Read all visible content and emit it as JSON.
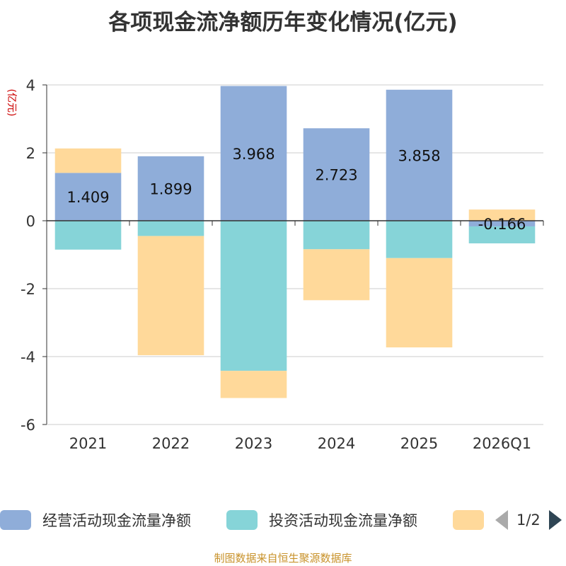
{
  "chart_data": {
    "type": "bar",
    "stacked": true,
    "title": "各项现金流净额历年变化情况(亿元)",
    "ylabel": "(亿元)",
    "xlabel": "",
    "ylim": [
      -6,
      4
    ],
    "yticks": [
      -6,
      -4,
      -2,
      0,
      2,
      4
    ],
    "grid": true,
    "legend_position": "bottom",
    "categories": [
      "2021",
      "2022",
      "2023",
      "2024",
      "2025",
      "2026Q1"
    ],
    "series": [
      {
        "name": "经营活动现金流量净额",
        "color": "#8fadd9",
        "values": [
          1.409,
          1.899,
          3.968,
          2.723,
          3.858,
          -0.166
        ],
        "labels": [
          "1.409",
          "1.899",
          "3.968",
          "2.723",
          "3.858",
          "-0.166"
        ]
      },
      {
        "name": "投资活动现金流量净额",
        "color": "#86d4d8",
        "values": [
          -0.85,
          -0.45,
          -4.42,
          -0.84,
          -1.1,
          -0.5
        ],
        "labels": null
      },
      {
        "name": "",
        "color": "#ffd99a",
        "values": [
          0.72,
          -3.51,
          -0.8,
          -1.5,
          -2.63,
          0.33
        ],
        "labels": null
      }
    ]
  },
  "legend": {
    "page_indicator": "1/2"
  },
  "footer": "制图数据来自恒生聚源数据库"
}
